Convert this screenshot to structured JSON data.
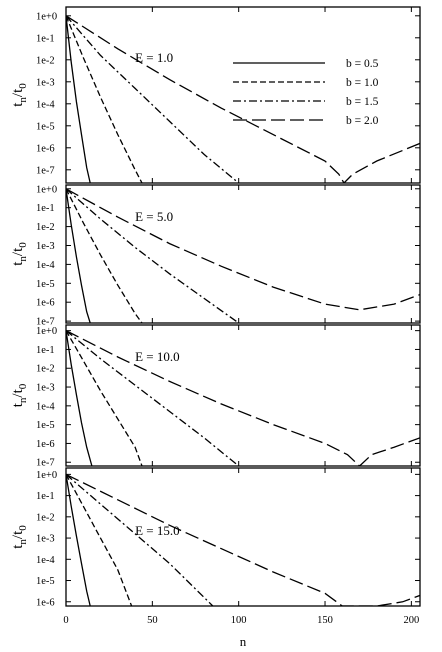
{
  "chart_data": {
    "type": "line",
    "shared_x_axis": {
      "label": "n",
      "range": [
        0,
        205
      ],
      "ticks": [
        0,
        50,
        100,
        150,
        200
      ],
      "tick_labels": [
        "0",
        "50",
        "100",
        "150",
        "200"
      ]
    },
    "legend": {
      "placement": "top-right of first panel",
      "entries": [
        {
          "label": "b = 0.5",
          "dash": "solid"
        },
        {
          "label": "b = 1.0",
          "dash": "short-dash"
        },
        {
          "label": "b = 1.5",
          "dash": "dash-dot"
        },
        {
          "label": "b = 2.0",
          "dash": "long-dash"
        }
      ]
    },
    "panels": [
      {
        "annotation": "E = 1.0",
        "ylabel": "t_n/t_0",
        "yscale": "log",
        "ylim_exp": [
          -7.6,
          0.4
        ],
        "y_tick_labels": [
          "1e+0",
          "1e-1",
          "1e-2",
          "1e-3",
          "1e-4",
          "1e-5",
          "1e-6",
          "1e-7"
        ],
        "series": [
          {
            "name": "b = 0.5",
            "x": [
              0,
              3,
              6,
              9,
              12,
              14
            ],
            "log10_y": [
              0,
              -2.1,
              -3.9,
              -5.4,
              -6.9,
              -7.6
            ]
          },
          {
            "name": "b = 1.0",
            "x": [
              0,
              10,
              20,
              30,
              40,
              44
            ],
            "log10_y": [
              0,
              -1.9,
              -3.7,
              -5.4,
              -7.0,
              -7.6
            ]
          },
          {
            "name": "b = 1.5",
            "x": [
              0,
              20,
              40,
              60,
              80,
              100
            ],
            "log10_y": [
              0,
              -1.8,
              -3.3,
              -4.8,
              -6.3,
              -7.6
            ]
          },
          {
            "name": "b = 2.0",
            "x": [
              0,
              30,
              60,
              90,
              120,
              150,
              158,
              161,
              166,
              180,
              205
            ],
            "log10_y": [
              0,
              -1.5,
              -2.9,
              -4.2,
              -5.4,
              -6.6,
              -7.2,
              -7.6,
              -7.2,
              -6.6,
              -5.8
            ]
          }
        ]
      },
      {
        "annotation": "E = 5.0",
        "ylabel": "t_n/t_0",
        "yscale": "log",
        "ylim_exp": [
          -7.1,
          0.2
        ],
        "y_tick_labels": [
          "1e+0",
          "1e-1",
          "1e-2",
          "1e-3",
          "1e-4",
          "1e-5",
          "1e-6",
          "1e-7"
        ],
        "series": [
          {
            "name": "b = 0.5",
            "x": [
              0,
              3,
              6,
              9,
              12,
              14
            ],
            "log10_y": [
              0,
              -1.9,
              -3.6,
              -5.1,
              -6.5,
              -7.1
            ]
          },
          {
            "name": "b = 1.0",
            "x": [
              0,
              10,
              20,
              30,
              40,
              44
            ],
            "log10_y": [
              0,
              -1.8,
              -3.5,
              -5.1,
              -6.6,
              -7.1
            ]
          },
          {
            "name": "b = 1.5",
            "x": [
              0,
              20,
              40,
              60,
              80,
              100
            ],
            "log10_y": [
              0,
              -1.6,
              -3.1,
              -4.5,
              -5.8,
              -7.1
            ]
          },
          {
            "name": "b = 2.0",
            "x": [
              0,
              30,
              60,
              90,
              120,
              150,
              170,
              190,
              205
            ],
            "log10_y": [
              0,
              -1.5,
              -2.9,
              -4.1,
              -5.2,
              -6.1,
              -6.4,
              -6.1,
              -5.6
            ]
          }
        ]
      },
      {
        "annotation": "E = 10.0",
        "ylabel": "t_n/t_0",
        "yscale": "log",
        "ylim_exp": [
          -7.2,
          0.3
        ],
        "y_tick_labels": [
          "1e+0",
          "1e-1",
          "1e-2",
          "1e-3",
          "1e-4",
          "1e-5",
          "1e-6",
          "1e-7"
        ],
        "series": [
          {
            "name": "b = 0.5",
            "x": [
              0,
              3,
              6,
              9,
              12,
              15
            ],
            "log10_y": [
              0,
              -1.8,
              -3.4,
              -4.9,
              -6.2,
              -7.2
            ]
          },
          {
            "name": "b = 1.0",
            "x": [
              0,
              10,
              20,
              30,
              40,
              44
            ],
            "log10_y": [
              0,
              -1.6,
              -3.2,
              -4.7,
              -6.2,
              -7.2
            ]
          },
          {
            "name": "b = 1.5",
            "x": [
              0,
              20,
              40,
              60,
              80,
              100
            ],
            "log10_y": [
              0,
              -1.5,
              -2.9,
              -4.3,
              -5.7,
              -7.2
            ]
          },
          {
            "name": "b = 2.0",
            "x": [
              0,
              30,
              60,
              90,
              120,
              150,
              163,
              170,
              177,
              190,
              205
            ],
            "log10_y": [
              0,
              -1.4,
              -2.7,
              -3.9,
              -5.0,
              -6.0,
              -6.6,
              -7.2,
              -6.6,
              -6.2,
              -5.7
            ]
          }
        ]
      },
      {
        "annotation": "E = 15.0",
        "ylabel": "t_n/t_0",
        "yscale": "log",
        "ylim_exp": [
          -6.2,
          0.3
        ],
        "y_tick_labels": [
          "1e+0",
          "1e-1",
          "1e-2",
          "1e-3",
          "1e-4",
          "1e-5",
          "1e-6"
        ],
        "series": [
          {
            "name": "b = 0.5",
            "x": [
              0,
              3,
              6,
              9,
              12,
              14
            ],
            "log10_y": [
              0,
              -1.5,
              -2.9,
              -4.2,
              -5.5,
              -6.2
            ]
          },
          {
            "name": "b = 1.0",
            "x": [
              0,
              10,
              20,
              30,
              38
            ],
            "log10_y": [
              0,
              -1.5,
              -3.0,
              -4.5,
              -6.2
            ]
          },
          {
            "name": "b = 1.5",
            "x": [
              0,
              20,
              40,
              60,
              85
            ],
            "log10_y": [
              0,
              -1.4,
              -2.8,
              -4.2,
              -6.2
            ]
          },
          {
            "name": "b = 2.0",
            "x": [
              0,
              30,
              60,
              90,
              120,
              150,
              160,
              180,
              195,
              205
            ],
            "log10_y": [
              0,
              -1.2,
              -2.4,
              -3.5,
              -4.6,
              -5.6,
              -6.2,
              -6.2,
              -6.0,
              -5.7
            ]
          }
        ]
      }
    ]
  }
}
